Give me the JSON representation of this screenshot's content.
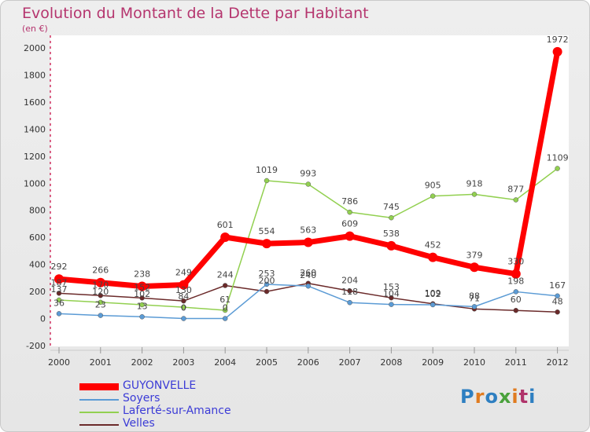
{
  "title": "Evolution du Montant de la Dette par Habitant",
  "subtitle": "(en €)",
  "logo_text": "Proxiti",
  "chart_data": {
    "type": "line",
    "title": "Evolution du Montant de la Dette par Habitant",
    "ylabel": "(en €)",
    "ylim": [
      -200,
      2000
    ],
    "yticks": [
      -200,
      0,
      200,
      400,
      600,
      800,
      1000,
      1200,
      1400,
      1600,
      1800,
      2000
    ],
    "x": [
      "2000",
      "2001",
      "2002",
      "2003",
      "2004",
      "2005",
      "2006",
      "2007",
      "2008",
      "2009",
      "2010",
      "2011",
      "2012"
    ],
    "legend_position": "bottom-left",
    "series": [
      {
        "name": "GUYONVELLE",
        "color": "#ff0000",
        "values": [
          292,
          266,
          238,
          249,
          601,
          554,
          563,
          609,
          538,
          452,
          379,
          330,
          1972
        ]
      },
      {
        "name": "Soyers",
        "color": "#5b9bd5",
        "values": [
          36,
          23,
          13,
          0,
          0,
          253,
          240,
          118,
          104,
          102,
          88,
          198,
          167
        ]
      },
      {
        "name": "Laferté-sur-Amance",
        "color": "#92d050",
        "values": [
          137,
          120,
          102,
          84,
          61,
          1019,
          993,
          786,
          745,
          905,
          918,
          877,
          1109
        ]
      },
      {
        "name": "Velles",
        "color": "#6b2a2a",
        "values": [
          187,
          170,
          152,
          130,
          244,
          200,
          260,
          204,
          153,
          109,
          71,
          60,
          48
        ]
      }
    ],
    "data_labels": [
      [
        "292",
        "266",
        "238",
        "249",
        "601",
        "554",
        "563",
        "609",
        "538",
        "452",
        "379",
        "330",
        "1972"
      ],
      [
        "36",
        "23",
        "13",
        "0",
        "0",
        "253",
        "240",
        "118",
        "104",
        "102",
        "88",
        "198",
        "167"
      ],
      [
        "137",
        "120",
        "102",
        "84",
        "61",
        "1019",
        "993",
        "786",
        "745",
        "905",
        "918",
        "877",
        "1109"
      ],
      [
        "187",
        "170",
        "152",
        "130",
        "244",
        "200",
        "260",
        "204",
        "153",
        "109",
        "71",
        "60",
        "48"
      ]
    ]
  }
}
